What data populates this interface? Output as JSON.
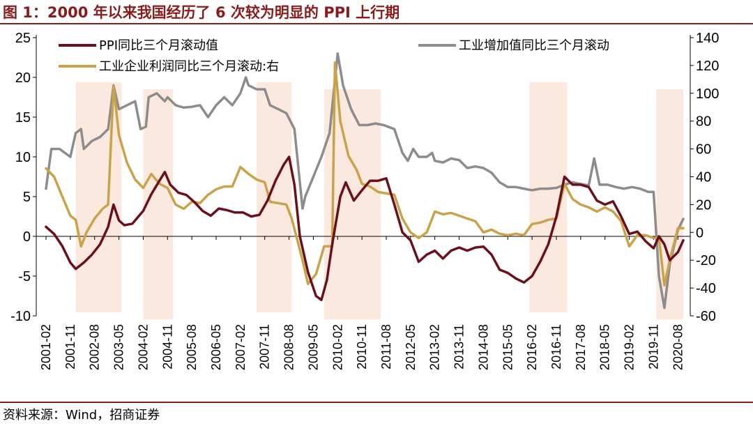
{
  "header": {
    "title": "图 1：2000 年以来我国经历了 6 次较为明显的 PPI 上行期"
  },
  "footer": {
    "source": "资料来源：Wind，招商证券"
  },
  "chart_data": {
    "type": "line",
    "title": "图 1：2000 年以来我国经历了 6 次较为明显的 PPI 上行期",
    "y_left": {
      "range": [
        -10,
        25
      ],
      "ticks": [
        "-10",
        "-5",
        "0",
        "5",
        "10",
        "15",
        "20",
        "25"
      ]
    },
    "y_right": {
      "range": [
        -60,
        140
      ],
      "ticks": [
        "-60",
        "-40",
        "-20",
        "0",
        "20",
        "40",
        "60",
        "80",
        "100",
        "120",
        "140"
      ]
    },
    "x_ticks": [
      "2001-02",
      "2001-11",
      "2002-08",
      "2003-05",
      "2004-02",
      "2004-11",
      "2005-08",
      "2006-05",
      "2007-02",
      "2007-11",
      "2008-08",
      "2009-05",
      "2010-02",
      "2010-11",
      "2011-08",
      "2012-05",
      "2013-02",
      "2013-11",
      "2014-08",
      "2015-05",
      "2016-02",
      "2016-11",
      "2017-08",
      "2018-05",
      "2019-02",
      "2019-11",
      "2020-08"
    ],
    "x_range": [
      "2001-02",
      "2020-10"
    ],
    "shaded_periods": [
      {
        "start": "2002-01",
        "end": "2003-06"
      },
      {
        "start": "2004-02",
        "end": "2005-01"
      },
      {
        "start": "2007-08",
        "end": "2008-09"
      },
      {
        "start": "2009-09",
        "end": "2011-06"
      },
      {
        "start": "2016-01",
        "end": "2017-03"
      },
      {
        "start": "2019-12",
        "end": "2020-10"
      }
    ],
    "series": [
      {
        "name": "PPI同比三个月滚动值",
        "axis": "left",
        "color": "#6B0F1A",
        "points": [
          [
            "2001-02",
            1.2
          ],
          [
            "2001-05",
            0.3
          ],
          [
            "2001-08",
            -1.2
          ],
          [
            "2001-11",
            -3.3
          ],
          [
            "2002-01",
            -4.1
          ],
          [
            "2002-04",
            -3.3
          ],
          [
            "2002-07",
            -2.3
          ],
          [
            "2002-10",
            -1.0
          ],
          [
            "2003-01",
            1.2
          ],
          [
            "2003-03",
            4.0
          ],
          [
            "2003-05",
            2.0
          ],
          [
            "2003-07",
            1.4
          ],
          [
            "2003-10",
            1.6
          ],
          [
            "2004-02",
            3.2
          ],
          [
            "2004-05",
            5.3
          ],
          [
            "2004-08",
            7.0
          ],
          [
            "2004-10",
            8.1
          ],
          [
            "2004-12",
            6.5
          ],
          [
            "2005-03",
            5.5
          ],
          [
            "2005-06",
            5.2
          ],
          [
            "2005-09",
            4.3
          ],
          [
            "2005-12",
            3.2
          ],
          [
            "2006-03",
            2.6
          ],
          [
            "2006-06",
            3.5
          ],
          [
            "2006-09",
            3.3
          ],
          [
            "2006-12",
            3.0
          ],
          [
            "2007-03",
            3.0
          ],
          [
            "2007-06",
            2.5
          ],
          [
            "2007-09",
            2.7
          ],
          [
            "2007-12",
            4.5
          ],
          [
            "2008-03",
            7.0
          ],
          [
            "2008-06",
            9.0
          ],
          [
            "2008-08",
            10.0
          ],
          [
            "2008-10",
            6.5
          ],
          [
            "2008-12",
            0.0
          ],
          [
            "2009-03",
            -4.5
          ],
          [
            "2009-06",
            -7.5
          ],
          [
            "2009-08",
            -8.0
          ],
          [
            "2009-10",
            -5.5
          ],
          [
            "2009-12",
            -1.0
          ],
          [
            "2010-03",
            5.0
          ],
          [
            "2010-05",
            6.8
          ],
          [
            "2010-08",
            4.5
          ],
          [
            "2010-11",
            5.8
          ],
          [
            "2011-02",
            7.0
          ],
          [
            "2011-05",
            7.0
          ],
          [
            "2011-08",
            7.3
          ],
          [
            "2011-11",
            4.0
          ],
          [
            "2012-02",
            0.5
          ],
          [
            "2012-05",
            -0.5
          ],
          [
            "2012-08",
            -3.2
          ],
          [
            "2012-11",
            -2.3
          ],
          [
            "2013-02",
            -1.8
          ],
          [
            "2013-05",
            -2.8
          ],
          [
            "2013-08",
            -1.8
          ],
          [
            "2013-11",
            -1.4
          ],
          [
            "2014-02",
            -1.8
          ],
          [
            "2014-05",
            -1.4
          ],
          [
            "2014-08",
            -1.3
          ],
          [
            "2014-11",
            -2.3
          ],
          [
            "2015-02",
            -4.2
          ],
          [
            "2015-05",
            -4.6
          ],
          [
            "2015-08",
            -5.3
          ],
          [
            "2015-11",
            -5.8
          ],
          [
            "2016-02",
            -5.0
          ],
          [
            "2016-05",
            -3.2
          ],
          [
            "2016-08",
            -1.0
          ],
          [
            "2016-11",
            2.5
          ],
          [
            "2017-02",
            7.5
          ],
          [
            "2017-05",
            6.5
          ],
          [
            "2017-08",
            6.5
          ],
          [
            "2017-11",
            6.2
          ],
          [
            "2018-02",
            4.5
          ],
          [
            "2018-05",
            4.0
          ],
          [
            "2018-08",
            4.4
          ],
          [
            "2018-11",
            2.5
          ],
          [
            "2019-02",
            0.3
          ],
          [
            "2019-05",
            0.6
          ],
          [
            "2019-08",
            -0.6
          ],
          [
            "2019-11",
            -1.5
          ],
          [
            "2020-01",
            0.0
          ],
          [
            "2020-03",
            -1.0
          ],
          [
            "2020-05",
            -3.0
          ],
          [
            "2020-08",
            -2.0
          ],
          [
            "2020-10",
            -0.5
          ]
        ]
      },
      {
        "name": "工业增加值同比三个月滚动",
        "axis": "left",
        "color": "#8C8C8C",
        "points": [
          [
            "2001-02",
            6.0
          ],
          [
            "2001-04",
            11.0
          ],
          [
            "2001-07",
            11.0
          ],
          [
            "2001-11",
            10.0
          ],
          [
            "2002-01",
            13.0
          ],
          [
            "2002-03",
            13.5
          ],
          [
            "2002-04",
            11.0
          ],
          [
            "2002-07",
            12.0
          ],
          [
            "2002-10",
            12.5
          ],
          [
            "2003-01",
            13.5
          ],
          [
            "2003-03",
            19.0
          ],
          [
            "2003-05",
            16.0
          ],
          [
            "2003-08",
            16.5
          ],
          [
            "2003-11",
            17.0
          ],
          [
            "2004-01",
            13.5
          ],
          [
            "2004-03",
            13.8
          ],
          [
            "2004-04",
            17.5
          ],
          [
            "2004-07",
            18.0
          ],
          [
            "2004-10",
            17.0
          ],
          [
            "2004-11",
            17.5
          ],
          [
            "2005-02",
            16.5
          ],
          [
            "2005-05",
            16.2
          ],
          [
            "2005-08",
            16.3
          ],
          [
            "2005-11",
            16.5
          ],
          [
            "2006-02",
            15.0
          ],
          [
            "2006-05",
            16.5
          ],
          [
            "2006-08",
            17.5
          ],
          [
            "2006-11",
            16.5
          ],
          [
            "2007-02",
            18.0
          ],
          [
            "2007-04",
            20.0
          ],
          [
            "2007-05",
            19.0
          ],
          [
            "2007-08",
            18.5
          ],
          [
            "2007-11",
            18.5
          ],
          [
            "2008-01",
            16.5
          ],
          [
            "2008-04",
            16.0
          ],
          [
            "2008-07",
            15.5
          ],
          [
            "2008-10",
            13.5
          ],
          [
            "2009-01",
            3.5
          ],
          [
            "2009-02",
            5.0
          ],
          [
            "2009-05",
            7.5
          ],
          [
            "2009-08",
            10.0
          ],
          [
            "2009-11",
            13.0
          ],
          [
            "2010-02",
            23.0
          ],
          [
            "2010-04",
            19.0
          ],
          [
            "2010-07",
            16.0
          ],
          [
            "2010-10",
            14.0
          ],
          [
            "2011-01",
            14.0
          ],
          [
            "2011-04",
            14.2
          ],
          [
            "2011-07",
            14.0
          ],
          [
            "2011-11",
            13.5
          ],
          [
            "2012-02",
            10.5
          ],
          [
            "2012-04",
            9.5
          ],
          [
            "2012-06",
            11.0
          ],
          [
            "2012-08",
            10.0
          ],
          [
            "2012-11",
            10.0
          ],
          [
            "2013-01",
            10.5
          ],
          [
            "2013-02",
            9.5
          ],
          [
            "2013-05",
            9.3
          ],
          [
            "2013-08",
            9.8
          ],
          [
            "2013-11",
            9.6
          ],
          [
            "2014-02",
            8.6
          ],
          [
            "2014-05",
            8.8
          ],
          [
            "2014-08",
            8.6
          ],
          [
            "2014-11",
            8.0
          ],
          [
            "2015-02",
            6.8
          ],
          [
            "2015-05",
            6.2
          ],
          [
            "2015-08",
            6.2
          ],
          [
            "2015-11",
            6.0
          ],
          [
            "2016-02",
            5.8
          ],
          [
            "2016-05",
            6.0
          ],
          [
            "2016-08",
            6.0
          ],
          [
            "2016-11",
            6.1
          ],
          [
            "2017-02",
            6.5
          ],
          [
            "2017-05",
            6.8
          ],
          [
            "2017-08",
            6.6
          ],
          [
            "2017-11",
            6.4
          ],
          [
            "2018-01",
            9.8
          ],
          [
            "2018-03",
            6.5
          ],
          [
            "2018-06",
            6.5
          ],
          [
            "2018-09",
            6.2
          ],
          [
            "2018-12",
            6.0
          ],
          [
            "2019-03",
            6.2
          ],
          [
            "2019-06",
            6.0
          ],
          [
            "2019-09",
            5.6
          ],
          [
            "2019-11",
            5.6
          ],
          [
            "2020-01",
            -5.0
          ],
          [
            "2020-03",
            -9.0
          ],
          [
            "2020-05",
            -3.5
          ],
          [
            "2020-08",
            0.8
          ],
          [
            "2020-10",
            2.2
          ]
        ]
      },
      {
        "name": "工业企业利润同比三个月滚动:右",
        "axis": "right",
        "color": "#C9A24A",
        "points": [
          [
            "2001-02",
            46
          ],
          [
            "2001-05",
            40
          ],
          [
            "2001-08",
            26
          ],
          [
            "2001-11",
            12
          ],
          [
            "2002-01",
            9
          ],
          [
            "2002-03",
            -10
          ],
          [
            "2002-05",
            0
          ],
          [
            "2002-08",
            10
          ],
          [
            "2002-11",
            17
          ],
          [
            "2003-01",
            20
          ],
          [
            "2003-03",
            105
          ],
          [
            "2003-05",
            70
          ],
          [
            "2003-08",
            50
          ],
          [
            "2003-11",
            38
          ],
          [
            "2004-02",
            32
          ],
          [
            "2004-05",
            42
          ],
          [
            "2004-08",
            35
          ],
          [
            "2004-11",
            32
          ],
          [
            "2005-02",
            20
          ],
          [
            "2005-05",
            17
          ],
          [
            "2005-08",
            22
          ],
          [
            "2005-11",
            21
          ],
          [
            "2006-02",
            27
          ],
          [
            "2006-05",
            31
          ],
          [
            "2006-08",
            33
          ],
          [
            "2006-11",
            33
          ],
          [
            "2007-02",
            47
          ],
          [
            "2007-05",
            42
          ],
          [
            "2007-08",
            38
          ],
          [
            "2007-11",
            36
          ],
          [
            "2008-01",
            22
          ],
          [
            "2008-04",
            21
          ],
          [
            "2008-07",
            20
          ],
          [
            "2008-09",
            10
          ],
          [
            "2009-01",
            -20
          ],
          [
            "2009-03",
            -37
          ],
          [
            "2009-06",
            -30
          ],
          [
            "2009-09",
            -10
          ],
          [
            "2009-12",
            -10
          ],
          [
            "2010-01",
            122
          ],
          [
            "2010-03",
            80
          ],
          [
            "2010-06",
            55
          ],
          [
            "2010-09",
            45
          ],
          [
            "2010-11",
            35
          ],
          [
            "2011-02",
            33
          ],
          [
            "2011-05",
            29
          ],
          [
            "2011-08",
            28
          ],
          [
            "2011-11",
            27
          ],
          [
            "2012-02",
            10
          ],
          [
            "2012-05",
            0
          ],
          [
            "2012-08",
            -4
          ],
          [
            "2012-11",
            0
          ],
          [
            "2013-02",
            15
          ],
          [
            "2013-05",
            13
          ],
          [
            "2013-08",
            14
          ],
          [
            "2013-11",
            12
          ],
          [
            "2014-02",
            10
          ],
          [
            "2014-05",
            8
          ],
          [
            "2014-08",
            0
          ],
          [
            "2014-11",
            2
          ],
          [
            "2015-02",
            -1
          ],
          [
            "2015-05",
            -2
          ],
          [
            "2015-08",
            -1
          ],
          [
            "2015-11",
            -2
          ],
          [
            "2016-02",
            6
          ],
          [
            "2016-05",
            7
          ],
          [
            "2016-08",
            9
          ],
          [
            "2016-11",
            10
          ],
          [
            "2017-02",
            35
          ],
          [
            "2017-05",
            24
          ],
          [
            "2017-08",
            20
          ],
          [
            "2017-11",
            18
          ],
          [
            "2018-02",
            15
          ],
          [
            "2018-05",
            18
          ],
          [
            "2018-08",
            15
          ],
          [
            "2018-11",
            8
          ],
          [
            "2019-02",
            -10
          ],
          [
            "2019-05",
            -2
          ],
          [
            "2019-08",
            -2
          ],
          [
            "2019-11",
            -4
          ],
          [
            "2020-01",
            -4
          ],
          [
            "2020-03",
            -38
          ],
          [
            "2020-05",
            -20
          ],
          [
            "2020-08",
            3
          ],
          [
            "2020-10",
            3
          ]
        ]
      }
    ]
  }
}
